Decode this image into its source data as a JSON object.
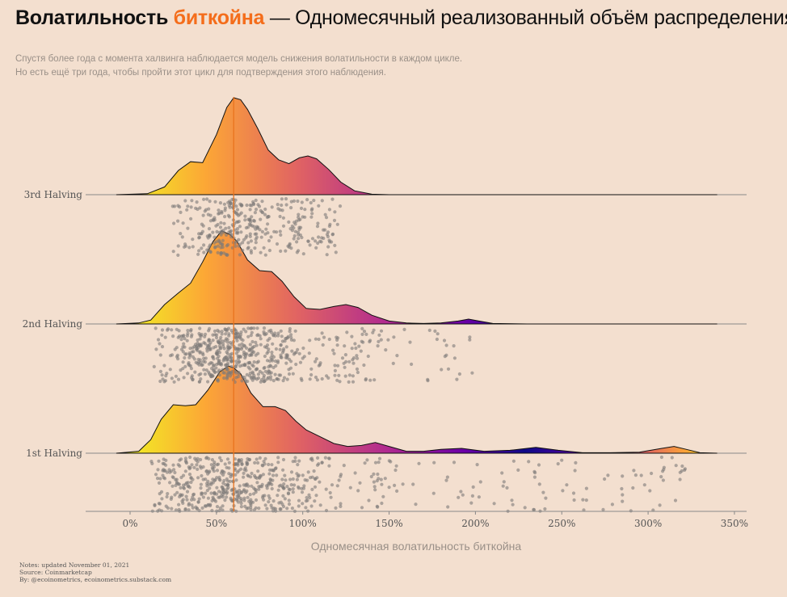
{
  "header": {
    "title_bold": "Волатильность",
    "title_accent": "биткойна",
    "title_rest": "— Одномесячный реализованный объём распределения",
    "subtitle_line1": "Спустя более года с момента халвинга наблюдается модель снижения волатильности в каждом цикле.",
    "subtitle_line2": "Но есть ещё три года, чтобы пройти этот цикл для подтверждения этого наблюдения."
  },
  "notes": {
    "line1": "Notes: updated November 01, 2021",
    "line2": "Source: Coinmarketcap",
    "line3": "By: @ecoinometrics, ecoinometrics.substack.com"
  },
  "colors": {
    "background": "#f3dfcf",
    "accent": "#f46d1b",
    "median_line": "#e8731e",
    "points": "#7d7a78"
  },
  "chart_data": {
    "type": "ridgeline",
    "xlabel": "Одномесячная волатильность биткойна",
    "xticks": [
      "0%",
      "50%",
      "100%",
      "150%",
      "200%",
      "250%",
      "300%",
      "350%"
    ],
    "xtick_values": [
      0,
      50,
      100,
      150,
      200,
      250,
      300,
      350
    ],
    "xlim": [
      -25,
      360
    ],
    "median_value": 60,
    "series": [
      {
        "name": "3rd Halving",
        "density_x": [
          -8,
          10,
          20,
          28,
          35,
          42,
          50,
          56,
          60,
          64,
          68,
          74,
          80,
          86,
          92,
          98,
          103,
          108,
          115,
          122,
          130,
          140,
          150,
          200,
          250,
          300,
          340
        ],
        "density_y": [
          0,
          0.01,
          0.08,
          0.25,
          0.34,
          0.33,
          0.62,
          0.9,
          1.0,
          0.98,
          0.88,
          0.68,
          0.46,
          0.36,
          0.32,
          0.38,
          0.4,
          0.37,
          0.26,
          0.13,
          0.04,
          0.005,
          0,
          0,
          0,
          0,
          0
        ],
        "points_range": [
          22,
          122
        ],
        "points_count": 360
      },
      {
        "name": "2nd Halving",
        "density_x": [
          -8,
          5,
          12,
          20,
          28,
          35,
          42,
          48,
          53,
          58,
          62,
          68,
          75,
          82,
          88,
          95,
          102,
          110,
          118,
          125,
          132,
          140,
          150,
          160,
          170,
          180,
          190,
          196,
          202,
          210,
          230,
          260,
          300,
          340
        ],
        "density_y": [
          0,
          0.01,
          0.04,
          0.2,
          0.32,
          0.42,
          0.64,
          0.85,
          0.96,
          0.92,
          0.85,
          0.66,
          0.55,
          0.54,
          0.44,
          0.28,
          0.16,
          0.15,
          0.18,
          0.2,
          0.17,
          0.09,
          0.03,
          0.01,
          0.005,
          0.01,
          0.03,
          0.05,
          0.03,
          0.005,
          0,
          0,
          0,
          0
        ],
        "points_range": [
          12,
          200
        ],
        "points_count": 650
      },
      {
        "name": "1st Halving",
        "density_x": [
          -8,
          5,
          12,
          18,
          25,
          32,
          38,
          45,
          52,
          57,
          60,
          64,
          70,
          77,
          84,
          90,
          96,
          102,
          110,
          118,
          126,
          134,
          142,
          150,
          160,
          170,
          180,
          192,
          205,
          220,
          235,
          248,
          262,
          278,
          295,
          308,
          315,
          322,
          330,
          340
        ],
        "density_y": [
          0,
          0.02,
          0.14,
          0.35,
          0.5,
          0.49,
          0.5,
          0.65,
          0.84,
          0.9,
          0.88,
          0.82,
          0.62,
          0.48,
          0.48,
          0.44,
          0.33,
          0.24,
          0.17,
          0.1,
          0.07,
          0.08,
          0.11,
          0.07,
          0.02,
          0.02,
          0.04,
          0.05,
          0.02,
          0.03,
          0.06,
          0.03,
          0.005,
          0.005,
          0.01,
          0.05,
          0.07,
          0.04,
          0.005,
          0
        ],
        "points_range": [
          12,
          322
        ],
        "points_count": 650
      }
    ]
  }
}
